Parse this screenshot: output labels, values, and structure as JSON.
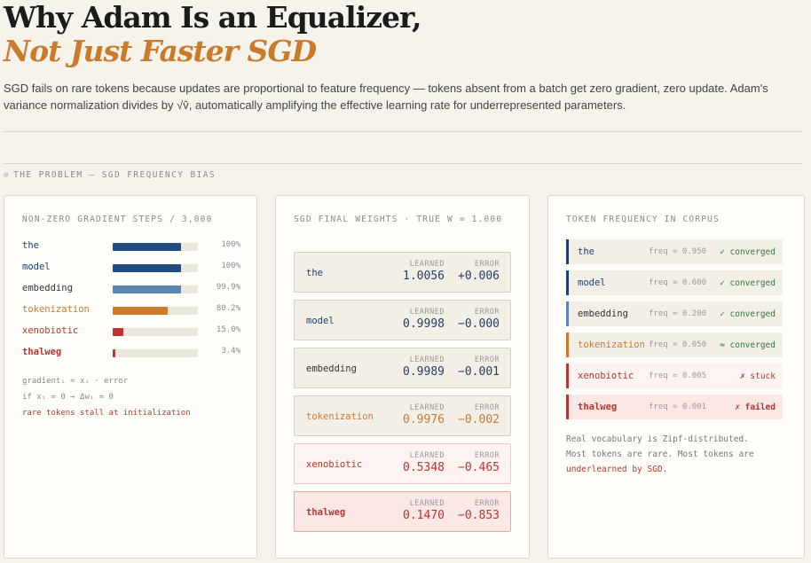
{
  "title_line1": "Why Adam Is an Equalizer,",
  "title_line2": "Not Just Faster SGD",
  "lede": "SGD fails on rare tokens because updates are proportional to feature frequency — tokens absent from a batch get zero gradient, zero update. Adam's variance normalization divides by √v̂, automatically amplifying the effective learning rate for underrepresented parameters.",
  "section": {
    "icon": "⊕",
    "label": "THE PROBLEM — SGD FREQUENCY BIAS"
  },
  "colors": {
    "navy": "#1f4b7e",
    "steel": "#5b86b0",
    "orange": "#cb7a2a",
    "red": "#b8342e"
  },
  "card1": {
    "title": "NON-ZERO GRADIENT STEPS / 3,000",
    "rows": [
      {
        "label": "the",
        "pct": "100%",
        "frac": 1.0,
        "color": "#1f4b7e"
      },
      {
        "label": "model",
        "pct": "100%",
        "frac": 1.0,
        "color": "#1f4b7e"
      },
      {
        "label": "embedding",
        "pct": "99.9%",
        "frac": 0.999,
        "color": "#5b86b0"
      },
      {
        "label": "tokenization",
        "pct": "80.2%",
        "frac": 0.802,
        "color": "#cb7a2a"
      },
      {
        "label": "xenobiotic",
        "pct": "15.0%",
        "frac": 0.15,
        "color": "#b8342e"
      },
      {
        "label": "thalweg",
        "pct": "3.4%",
        "frac": 0.034,
        "color": "#b8342e"
      }
    ],
    "formula1": "gradientᵢ = xᵢ · error",
    "formula2": "if xᵢ = 0 → Δwᵢ = 0",
    "formula3": "rare tokens stall at initialization"
  },
  "card2": {
    "title": "SGD FINAL WEIGHTS  ·  TRUE W = 1.000",
    "learned_label": "LEARNED",
    "error_label": "ERROR",
    "rows": [
      {
        "name": "the",
        "learned": "1.0056",
        "error": "+0.006"
      },
      {
        "name": "model",
        "learned": "0.9998",
        "error": "−0.000"
      },
      {
        "name": "embedding",
        "learned": "0.9989",
        "error": "−0.001"
      },
      {
        "name": "tokenization",
        "learned": "0.9976",
        "error": "−0.002"
      },
      {
        "name": "xenobiotic",
        "learned": "0.5348",
        "error": "−0.465"
      },
      {
        "name": "thalweg",
        "learned": "0.1470",
        "error": "−0.853"
      }
    ]
  },
  "card3": {
    "title": "TOKEN FREQUENCY IN CORPUS",
    "rows": [
      {
        "name": "the",
        "freq": "freq = 0.950",
        "status": "✓ converged"
      },
      {
        "name": "model",
        "freq": "freq = 0.600",
        "status": "✓ converged"
      },
      {
        "name": "embedding",
        "freq": "freq = 0.200",
        "status": "✓ converged"
      },
      {
        "name": "tokenization",
        "freq": "freq = 0.050",
        "status": "≈ converged"
      },
      {
        "name": "xenobiotic",
        "freq": "freq = 0.005",
        "status": "✗ stuck"
      },
      {
        "name": "thalweg",
        "freq": "freq = 0.001",
        "status": "✗ failed"
      }
    ],
    "note1": "Real vocabulary is Zipf-distributed.",
    "note2": "Most tokens are rare. Most tokens are",
    "note3": "underlearned by SGD."
  }
}
